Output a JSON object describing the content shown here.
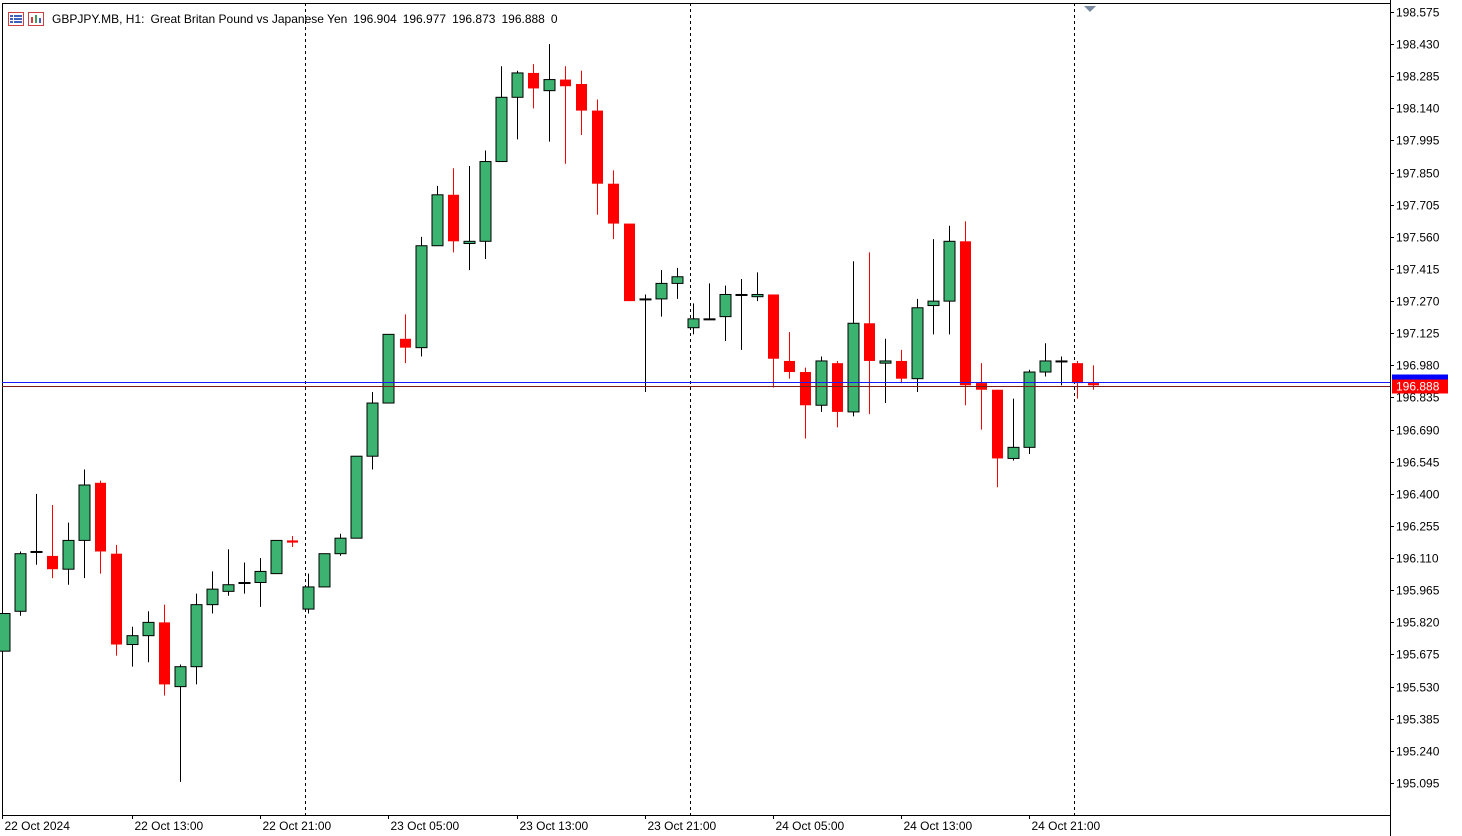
{
  "header": {
    "symbol": "GBPJPY.MB, H1:",
    "description": "Great Britan Pound vs Japanese Yen",
    "open": "196.904",
    "high": "196.977",
    "low": "196.873",
    "close": "196.888",
    "volume": "0",
    "icons": [
      "bar-list-icon",
      "chart-window-icon"
    ]
  },
  "colors": {
    "bull": "#3cb371",
    "bear": "#ff0000",
    "outline": "#000000",
    "bid_line": "#1a1aff",
    "ask_line": "#7a1a1a",
    "bid_badge": "#0000ff",
    "ask_badge": "#ff0000",
    "separator": "#000000"
  },
  "chart_data": {
    "type": "candlestick",
    "ylim": [
      195.0,
      198.6
    ],
    "y_ticks": [
      "198.575",
      "198.430",
      "198.285",
      "198.140",
      "197.995",
      "197.850",
      "197.705",
      "197.560",
      "197.415",
      "197.270",
      "197.125",
      "196.980",
      "196.835",
      "196.690",
      "196.545",
      "196.400",
      "196.255",
      "196.110",
      "195.965",
      "195.820",
      "195.675",
      "195.530",
      "195.385",
      "195.240",
      "195.095"
    ],
    "x_labels": [
      "22 Oct 2024",
      "22 Oct 13:00",
      "22 Oct 21:00",
      "23 Oct 05:00",
      "23 Oct 13:00",
      "23 Oct 21:00",
      "24 Oct 05:00",
      "24 Oct 13:00",
      "24 Oct 21:00"
    ],
    "x_label_index": [
      -0.3,
      8,
      16,
      24,
      32,
      40,
      48,
      56,
      64
    ],
    "separator_index": [
      18.8,
      42.8,
      66.8
    ],
    "current_price": "196.888",
    "bid_price": 196.905,
    "candles": [
      {
        "o": 195.69,
        "h": 195.86,
        "l": 195.69,
        "c": 195.86
      },
      {
        "o": 195.87,
        "h": 196.14,
        "l": 195.85,
        "c": 196.13
      },
      {
        "o": 196.14,
        "h": 196.4,
        "l": 196.08,
        "c": 196.14
      },
      {
        "o": 196.12,
        "h": 196.35,
        "l": 196.02,
        "c": 196.06
      },
      {
        "o": 196.06,
        "h": 196.27,
        "l": 195.99,
        "c": 196.19
      },
      {
        "o": 196.19,
        "h": 196.51,
        "l": 196.02,
        "c": 196.44
      },
      {
        "o": 196.45,
        "h": 196.46,
        "l": 196.04,
        "c": 196.14
      },
      {
        "o": 196.13,
        "h": 196.17,
        "l": 195.67,
        "c": 195.72
      },
      {
        "o": 195.72,
        "h": 195.8,
        "l": 195.62,
        "c": 195.76
      },
      {
        "o": 195.76,
        "h": 195.87,
        "l": 195.64,
        "c": 195.82
      },
      {
        "o": 195.82,
        "h": 195.9,
        "l": 195.49,
        "c": 195.54
      },
      {
        "o": 195.53,
        "h": 195.63,
        "l": 195.1,
        "c": 195.62
      },
      {
        "o": 195.62,
        "h": 195.95,
        "l": 195.54,
        "c": 195.9
      },
      {
        "o": 195.9,
        "h": 196.05,
        "l": 195.86,
        "c": 195.97
      },
      {
        "o": 195.96,
        "h": 196.15,
        "l": 195.94,
        "c": 195.99
      },
      {
        "o": 196.0,
        "h": 196.09,
        "l": 195.95,
        "c": 196.0
      },
      {
        "o": 196.0,
        "h": 196.11,
        "l": 195.89,
        "c": 196.05
      },
      {
        "o": 196.04,
        "h": 196.19,
        "l": 196.04,
        "c": 196.19
      },
      {
        "o": 196.19,
        "h": 196.21,
        "l": 196.16,
        "c": 196.18
      },
      {
        "o": 195.88,
        "h": 196.04,
        "l": 195.86,
        "c": 195.98
      },
      {
        "o": 195.98,
        "h": 196.13,
        "l": 195.98,
        "c": 196.13
      },
      {
        "o": 196.13,
        "h": 196.22,
        "l": 196.12,
        "c": 196.2
      },
      {
        "o": 196.2,
        "h": 196.57,
        "l": 196.2,
        "c": 196.57
      },
      {
        "o": 196.57,
        "h": 196.86,
        "l": 196.51,
        "c": 196.81
      },
      {
        "o": 196.81,
        "h": 197.12,
        "l": 196.81,
        "c": 197.12
      },
      {
        "o": 197.1,
        "h": 197.21,
        "l": 196.99,
        "c": 197.06
      },
      {
        "o": 197.06,
        "h": 197.56,
        "l": 197.02,
        "c": 197.52
      },
      {
        "o": 197.52,
        "h": 197.79,
        "l": 197.52,
        "c": 197.75
      },
      {
        "o": 197.75,
        "h": 197.87,
        "l": 197.49,
        "c": 197.54
      },
      {
        "o": 197.53,
        "h": 197.88,
        "l": 197.41,
        "c": 197.54
      },
      {
        "o": 197.54,
        "h": 197.95,
        "l": 197.46,
        "c": 197.9
      },
      {
        "o": 197.9,
        "h": 198.33,
        "l": 197.91,
        "c": 198.19
      },
      {
        "o": 198.19,
        "h": 198.31,
        "l": 198.0,
        "c": 198.3
      },
      {
        "o": 198.3,
        "h": 198.34,
        "l": 198.14,
        "c": 198.23
      },
      {
        "o": 198.22,
        "h": 198.43,
        "l": 197.99,
        "c": 198.27
      },
      {
        "o": 198.27,
        "h": 198.33,
        "l": 197.89,
        "c": 198.24
      },
      {
        "o": 198.25,
        "h": 198.31,
        "l": 198.02,
        "c": 198.13
      },
      {
        "o": 198.13,
        "h": 198.18,
        "l": 197.66,
        "c": 197.8
      },
      {
        "o": 197.8,
        "h": 197.86,
        "l": 197.55,
        "c": 197.62
      },
      {
        "o": 197.62,
        "h": 197.62,
        "l": 197.27,
        "c": 197.27
      },
      {
        "o": 197.28,
        "h": 197.3,
        "l": 196.86,
        "c": 197.28
      },
      {
        "o": 197.28,
        "h": 197.41,
        "l": 197.2,
        "c": 197.35
      },
      {
        "o": 197.35,
        "h": 197.42,
        "l": 197.28,
        "c": 197.38
      },
      {
        "o": 197.15,
        "h": 197.26,
        "l": 197.12,
        "c": 197.19
      },
      {
        "o": 197.19,
        "h": 197.35,
        "l": 197.19,
        "c": 197.19
      },
      {
        "o": 197.2,
        "h": 197.34,
        "l": 197.09,
        "c": 197.3
      },
      {
        "o": 197.3,
        "h": 197.37,
        "l": 197.05,
        "c": 197.3
      },
      {
        "o": 197.29,
        "h": 197.4,
        "l": 197.27,
        "c": 197.3
      },
      {
        "o": 197.3,
        "h": 197.3,
        "l": 196.88,
        "c": 197.01
      },
      {
        "o": 197.0,
        "h": 197.13,
        "l": 196.92,
        "c": 196.95
      },
      {
        "o": 196.95,
        "h": 196.97,
        "l": 196.65,
        "c": 196.8
      },
      {
        "o": 196.8,
        "h": 197.02,
        "l": 196.77,
        "c": 197.0
      },
      {
        "o": 196.99,
        "h": 197.0,
        "l": 196.7,
        "c": 196.77
      },
      {
        "o": 196.77,
        "h": 197.45,
        "l": 196.75,
        "c": 197.17
      },
      {
        "o": 197.17,
        "h": 197.49,
        "l": 196.76,
        "c": 197.0
      },
      {
        "o": 196.99,
        "h": 197.1,
        "l": 196.81,
        "c": 197.0
      },
      {
        "o": 197.0,
        "h": 197.05,
        "l": 196.9,
        "c": 196.92
      },
      {
        "o": 196.92,
        "h": 197.28,
        "l": 196.86,
        "c": 197.24
      },
      {
        "o": 197.25,
        "h": 197.55,
        "l": 197.12,
        "c": 197.27
      },
      {
        "o": 197.27,
        "h": 197.61,
        "l": 197.12,
        "c": 197.54
      },
      {
        "o": 197.54,
        "h": 197.63,
        "l": 196.8,
        "c": 196.89
      },
      {
        "o": 196.9,
        "h": 196.99,
        "l": 196.69,
        "c": 196.87
      },
      {
        "o": 196.87,
        "h": 196.87,
        "l": 196.43,
        "c": 196.56
      },
      {
        "o": 196.56,
        "h": 196.83,
        "l": 196.55,
        "c": 196.61
      },
      {
        "o": 196.61,
        "h": 196.96,
        "l": 196.58,
        "c": 196.95
      },
      {
        "o": 196.95,
        "h": 197.08,
        "l": 196.93,
        "c": 197.0
      },
      {
        "o": 197.0,
        "h": 197.02,
        "l": 196.89,
        "c": 197.0
      },
      {
        "o": 196.99,
        "h": 197.0,
        "l": 196.83,
        "c": 196.9
      },
      {
        "o": 196.9,
        "h": 196.98,
        "l": 196.87,
        "c": 196.89
      }
    ]
  }
}
